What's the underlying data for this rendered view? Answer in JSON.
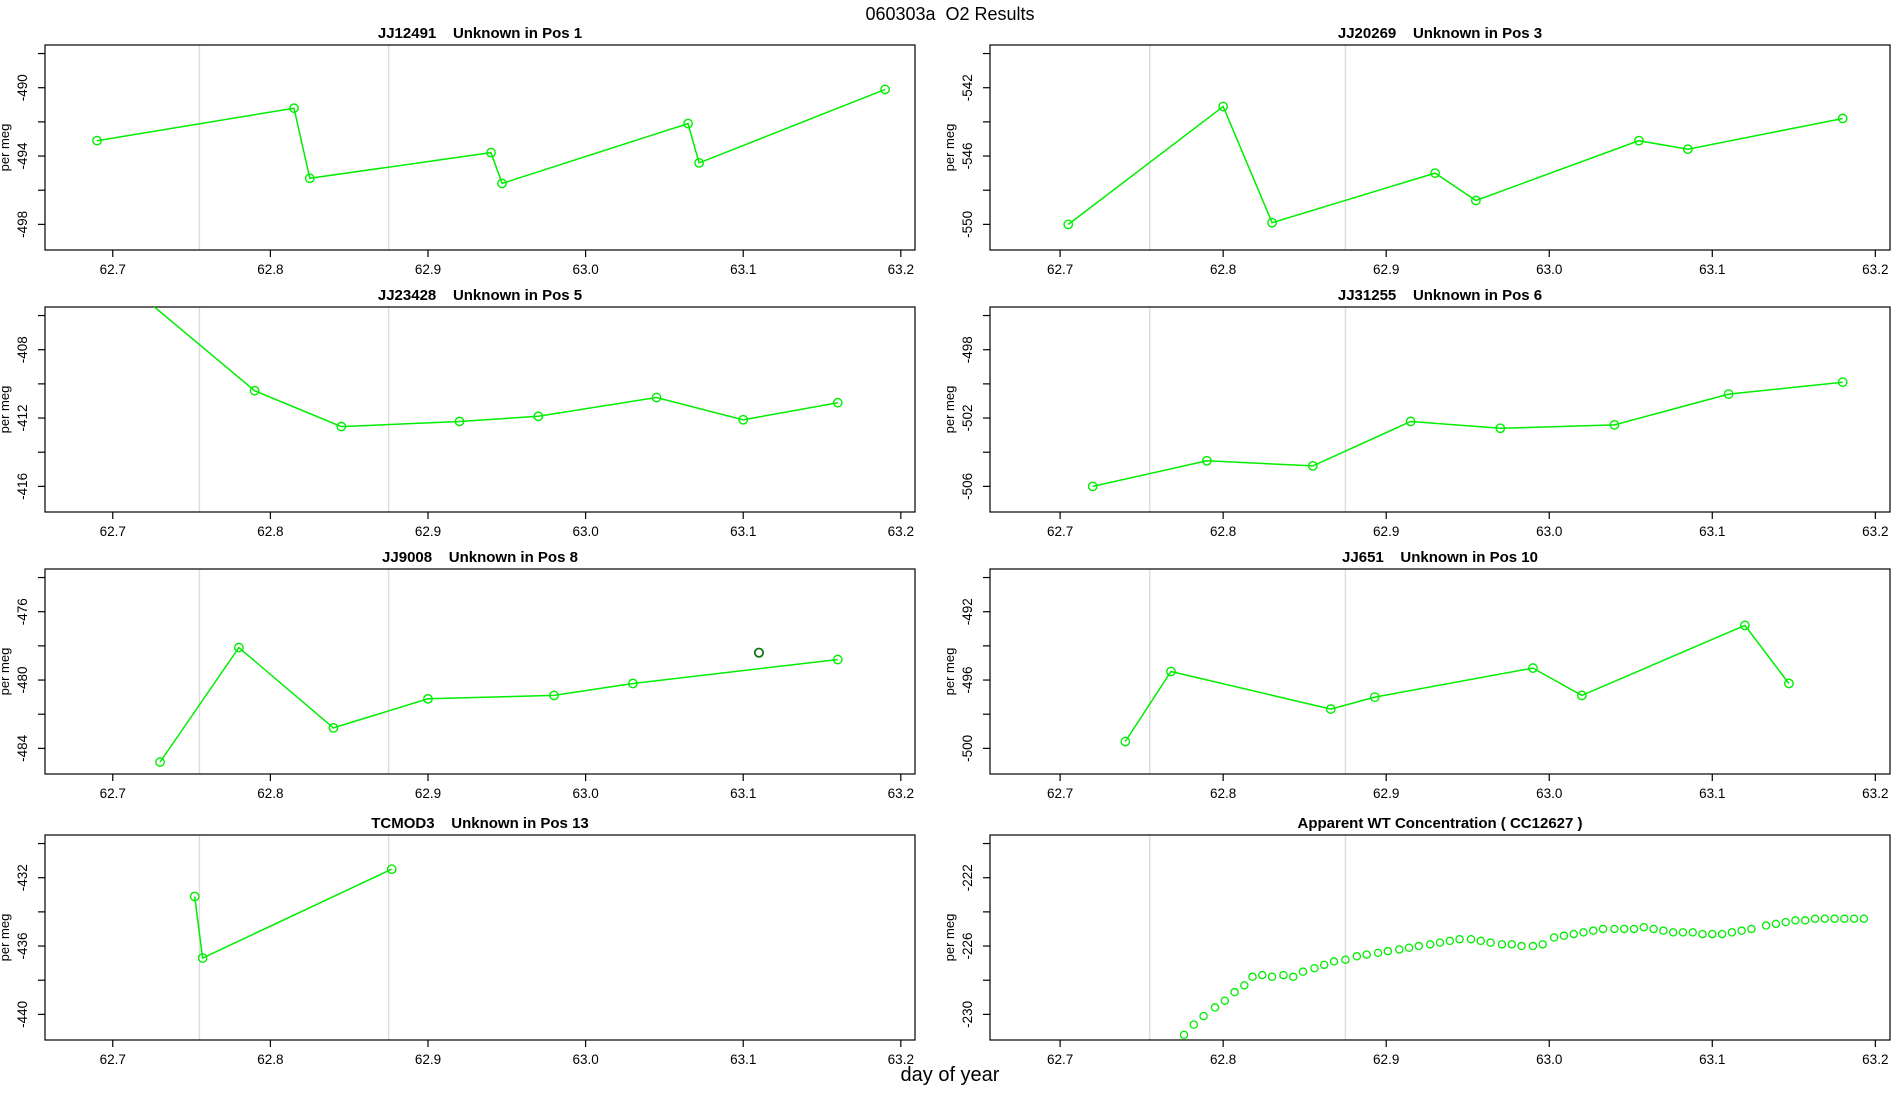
{
  "page_title": "060303a  O2 Results",
  "xlabel": "day of year",
  "axis": {
    "x_ticks": [
      62.7,
      62.8,
      62.9,
      63.0,
      63.1,
      63.2
    ],
    "x_tick_labels": [
      "62.7",
      "62.8",
      "62.9",
      "63.0",
      "63.1",
      "63.2"
    ],
    "x_lim": [
      62.657,
      63.209
    ],
    "gridlines_x": [
      62.755,
      62.875
    ],
    "y_tick_minor_step": 2
  },
  "colors": {
    "series": "#00ee00",
    "dark_point": "#117711",
    "gridline": "#dcdcdc",
    "axis": "#000000"
  },
  "chart_data": [
    {
      "type": "line",
      "title": "JJ12491    Unknown in Pos 1",
      "ylabel": "per meg",
      "y_ticks_labeled": [
        -498,
        -494,
        -490
      ],
      "x": [
        62.69,
        62.815,
        62.825,
        62.94,
        62.947,
        63.065,
        63.072,
        63.19
      ],
      "y": [
        -493.1,
        -491.2,
        -495.3,
        -493.8,
        -495.6,
        -492.1,
        -494.4,
        -490.1
      ]
    },
    {
      "type": "line",
      "title": "JJ20269    Unknown in Pos 3",
      "ylabel": "per meg",
      "y_ticks_labeled": [
        -550,
        -546,
        -542
      ],
      "x": [
        62.705,
        62.8,
        62.83,
        62.93,
        62.955,
        63.055,
        63.085,
        63.18
      ],
      "y": [
        -550.0,
        -543.1,
        -549.9,
        -547.0,
        -548.6,
        -545.1,
        -545.6,
        -543.8
      ]
    },
    {
      "type": "line",
      "title": "JJ23428    Unknown in Pos 5",
      "ylabel": "per meg",
      "y_ticks_labeled": [
        -416,
        -412,
        -408
      ],
      "x": [
        62.72,
        62.79,
        62.845,
        62.92,
        62.97,
        63.045,
        63.1,
        63.16
      ],
      "y": [
        -405.0,
        -410.4,
        -412.5,
        -412.2,
        -411.9,
        -410.8,
        -412.1,
        -411.1
      ]
    },
    {
      "type": "line",
      "title": "JJ31255    Unknown in Pos 6",
      "ylabel": "per meg",
      "y_ticks_labeled": [
        -506,
        -502,
        -498
      ],
      "x": [
        62.72,
        62.79,
        62.855,
        62.915,
        62.97,
        63.04,
        63.11,
        63.18
      ],
      "y": [
        -506.0,
        -504.5,
        -504.8,
        -502.2,
        -502.6,
        -502.4,
        -500.6,
        -499.9
      ]
    },
    {
      "type": "line",
      "title": "JJ9008    Unknown in Pos 8",
      "ylabel": "per meg",
      "y_ticks_labeled": [
        -484,
        -480,
        -476
      ],
      "x": [
        62.73,
        62.78,
        62.84,
        62.9,
        62.98,
        63.03,
        63.16
      ],
      "y": [
        -484.8,
        -478.1,
        -482.8,
        -481.1,
        -480.9,
        -480.2,
        -478.8
      ],
      "extra_points": {
        "x": [
          63.11
        ],
        "y": [
          -478.4
        ]
      }
    },
    {
      "type": "line",
      "title": "JJ651    Unknown in Pos 10",
      "ylabel": "per meg",
      "y_ticks_labeled": [
        -500,
        -496,
        -492
      ],
      "x": [
        62.74,
        62.768,
        62.866,
        62.893,
        62.99,
        63.02,
        63.12,
        63.147
      ],
      "y": [
        -499.6,
        -495.5,
        -497.7,
        -497.0,
        -495.3,
        -496.9,
        -492.8,
        -496.2
      ]
    },
    {
      "type": "line",
      "title": "TCMOD3    Unknown in Pos 13",
      "ylabel": "per meg",
      "y_ticks_labeled": [
        -440,
        -436,
        -432
      ],
      "x": [
        62.752,
        62.757,
        62.877
      ],
      "y": [
        -433.1,
        -436.7,
        -431.5
      ]
    },
    {
      "type": "scatter",
      "title": "Apparent WT Concentration ( CC12627 )",
      "ylabel": "per meg",
      "y_ticks_labeled": [
        -230,
        -226,
        -222
      ],
      "x": [
        62.776,
        62.782,
        62.788,
        62.795,
        62.801,
        62.807,
        62.813,
        62.818,
        62.824,
        62.83,
        62.837,
        62.843,
        62.849,
        62.856,
        62.862,
        62.868,
        62.875,
        62.882,
        62.888,
        62.895,
        62.901,
        62.908,
        62.914,
        62.92,
        62.927,
        62.933,
        62.939,
        62.945,
        62.952,
        62.958,
        62.964,
        62.971,
        62.977,
        62.983,
        62.99,
        62.996,
        63.003,
        63.009,
        63.015,
        63.021,
        63.027,
        63.033,
        63.04,
        63.046,
        63.052,
        63.058,
        63.064,
        63.07,
        63.076,
        63.082,
        63.088,
        63.094,
        63.1,
        63.106,
        63.112,
        63.118,
        63.124,
        63.133,
        63.139,
        63.145,
        63.151,
        63.157,
        63.163,
        63.169,
        63.175,
        63.181,
        63.187,
        63.193
      ],
      "y": [
        -231.2,
        -230.6,
        -230.1,
        -229.6,
        -229.2,
        -228.7,
        -228.3,
        -227.8,
        -227.7,
        -227.8,
        -227.7,
        -227.8,
        -227.5,
        -227.3,
        -227.1,
        -226.9,
        -226.8,
        -226.6,
        -226.5,
        -226.4,
        -226.3,
        -226.2,
        -226.1,
        -226.0,
        -225.9,
        -225.8,
        -225.7,
        -225.6,
        -225.6,
        -225.7,
        -225.8,
        -225.9,
        -225.9,
        -226.0,
        -226.0,
        -225.9,
        -225.5,
        -225.4,
        -225.3,
        -225.2,
        -225.1,
        -225.0,
        -225.0,
        -225.0,
        -225.0,
        -224.9,
        -225.0,
        -225.1,
        -225.2,
        -225.2,
        -225.2,
        -225.3,
        -225.3,
        -225.3,
        -225.2,
        -225.1,
        -225.0,
        -224.8,
        -224.7,
        -224.6,
        -224.5,
        -224.5,
        -224.4,
        -224.4,
        -224.4,
        -224.4,
        -224.4,
        -224.4
      ]
    }
  ]
}
